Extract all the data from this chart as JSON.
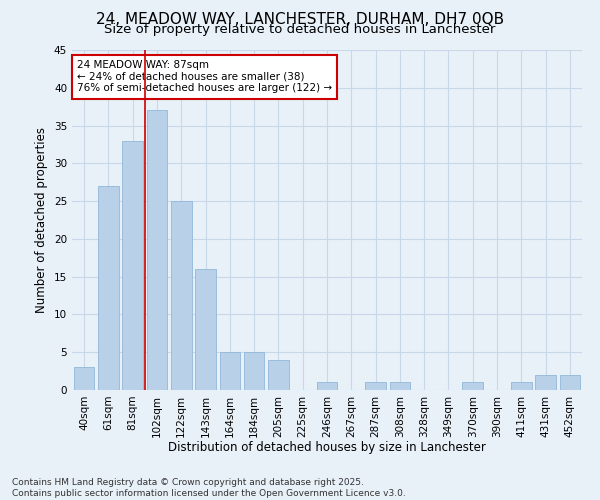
{
  "title": "24, MEADOW WAY, LANCHESTER, DURHAM, DH7 0QB",
  "subtitle": "Size of property relative to detached houses in Lanchester",
  "xlabel": "Distribution of detached houses by size in Lanchester",
  "ylabel": "Number of detached properties",
  "bin_labels": [
    "40sqm",
    "61sqm",
    "81sqm",
    "102sqm",
    "122sqm",
    "143sqm",
    "164sqm",
    "184sqm",
    "205sqm",
    "225sqm",
    "246sqm",
    "267sqm",
    "287sqm",
    "308sqm",
    "328sqm",
    "349sqm",
    "370sqm",
    "390sqm",
    "411sqm",
    "431sqm",
    "452sqm"
  ],
  "bar_values": [
    3,
    27,
    33,
    37,
    25,
    16,
    5,
    5,
    4,
    0,
    1,
    0,
    1,
    1,
    0,
    0,
    1,
    0,
    1,
    2,
    2
  ],
  "bar_color": "#b8d0e8",
  "bar_edge_color": "#90b8d8",
  "grid_color": "#c8d8e8",
  "background_color": "#e8f0f8",
  "vline_color": "#cc0000",
  "annotation_text": "24 MEADOW WAY: 87sqm\n← 24% of detached houses are smaller (38)\n76% of semi-detached houses are larger (122) →",
  "annotation_box_color": "white",
  "annotation_box_edge_color": "#cc0000",
  "footer_text": "Contains HM Land Registry data © Crown copyright and database right 2025.\nContains public sector information licensed under the Open Government Licence v3.0.",
  "ylim": [
    0,
    45
  ],
  "yticks": [
    0,
    5,
    10,
    15,
    20,
    25,
    30,
    35,
    40,
    45
  ],
  "title_fontsize": 11,
  "subtitle_fontsize": 9.5,
  "axis_label_fontsize": 8.5,
  "tick_fontsize": 7.5,
  "annotation_fontsize": 7.5,
  "footer_fontsize": 6.5,
  "vline_position": 2.5
}
